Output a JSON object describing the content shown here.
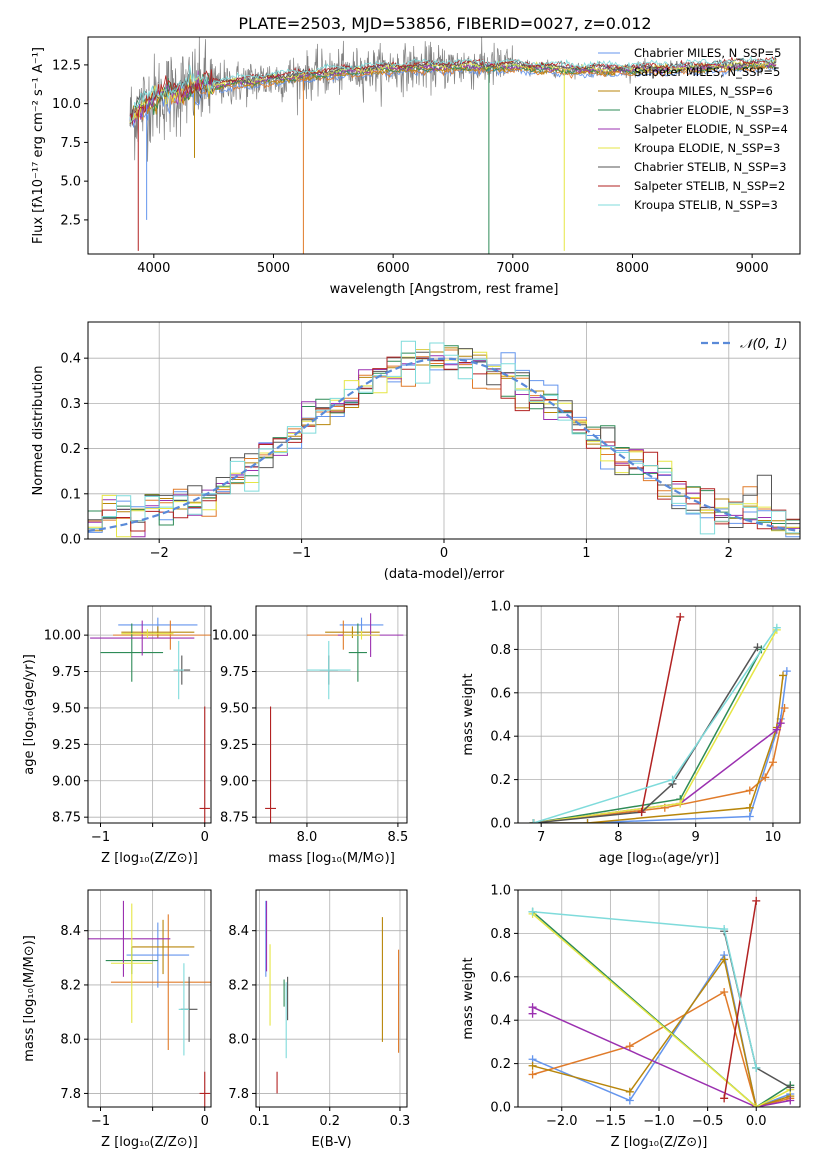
{
  "figure_title": "PLATE=2503, MJD=53856, FIBERID=0027, z=0.012",
  "model_colors": [
    "#6495ed",
    "#e07b2a",
    "#b8860b",
    "#2e8b57",
    "#9b30b0",
    "#e6e645",
    "#555555",
    "#b22222",
    "#7fdbdb"
  ],
  "chart_data": [
    {
      "id": "spectrum",
      "type": "line",
      "title": "PLATE=2503, MJD=53856, FIBERID=0027, z=0.012",
      "xlabel": "wavelength [Angstrom, rest frame]",
      "ylabel": "Flux [fλ10⁻¹⁷ erg cm⁻² s⁻¹ A⁻¹]",
      "xlim": [
        3450,
        9400
      ],
      "ylim": [
        0.3,
        14.3
      ],
      "xticks": [
        4000,
        5000,
        6000,
        7000,
        8000,
        9000
      ],
      "yticks": [
        2.5,
        5.0,
        7.5,
        10.0,
        12.5
      ],
      "xtick_labels": [
        "4000",
        "5000",
        "6000",
        "7000",
        "8000",
        "9000"
      ],
      "ytick_labels": [
        "2.5",
        "5.0",
        "7.5",
        "10.0",
        "12.5"
      ],
      "grid": false,
      "legend_position": "top-right",
      "legend": [
        "Chabrier MILES, N_SSP=5",
        "Salpeter MILES, N_SSP=5",
        "Kroupa MILES, N_SSP=6",
        "Chabrier ELODIE, N_SSP=3",
        "Salpeter ELODIE, N_SSP=4",
        "Kroupa ELODIE, N_SSP=3",
        "Chabrier STELIB, N_SSP=3",
        "Salpeter STELIB, N_SSP=2",
        "Kroupa STELIB, N_SSP=3"
      ],
      "data_wavelength_range": [
        3800,
        9200
      ],
      "continuum": {
        "x": [
          3800,
          3900,
          4000,
          4200,
          4500,
          5000,
          5500,
          6000,
          6500,
          7000,
          7500,
          8000,
          8500,
          9000,
          9200
        ],
        "y": [
          9.0,
          9.8,
          10.3,
          10.8,
          11.2,
          11.6,
          12.0,
          12.3,
          12.4,
          12.4,
          12.2,
          12.2,
          12.3,
          12.5,
          12.6
        ]
      },
      "spikes": [
        {
          "x": 5250,
          "y": 0.3
        },
        {
          "x": 6800,
          "y": 0.3
        },
        {
          "x": 7430,
          "y": 0.5
        },
        {
          "x": 3870,
          "y": 0.5
        },
        {
          "x": 3940,
          "y": 2.5
        },
        {
          "x": 4340,
          "y": 6.5
        }
      ]
    },
    {
      "id": "residual-histogram",
      "type": "line",
      "xlabel": "(data-model)/error",
      "ylabel": "Normed distribution",
      "xlim": [
        -2.5,
        2.5
      ],
      "ylim": [
        0,
        0.48
      ],
      "xticks": [
        -2,
        -1,
        0,
        1,
        2
      ],
      "yticks": [
        0.0,
        0.1,
        0.2,
        0.3,
        0.4
      ],
      "xtick_labels": [
        "−2",
        "−1",
        "0",
        "1",
        "2"
      ],
      "ytick_labels": [
        "0.0",
        "0.1",
        "0.2",
        "0.3",
        "0.4"
      ],
      "grid": true,
      "legend_position": "top-right",
      "legend": [
        "𝒩(0, 1)"
      ],
      "normal_curve": {
        "mean": 0,
        "std": 1
      }
    },
    {
      "id": "age-vs-z",
      "type": "scatter",
      "xlabel": "Z [log₁₀(Z/Z⊙)]",
      "ylabel": "age  [log₁₀(age/yr)]",
      "xlim": [
        -1.12,
        0.06
      ],
      "ylim": [
        8.71,
        10.2
      ],
      "xticks": [
        -1,
        -0.5,
        0
      ],
      "yticks": [
        8.75,
        9.0,
        9.25,
        9.5,
        9.75,
        10.0
      ],
      "xtick_labels": [
        "−1",
        "",
        "0"
      ],
      "ytick_labels": [
        "8.75",
        "9.00",
        "9.25",
        "9.50",
        "9.75",
        "10.00"
      ],
      "grid": true,
      "points": [
        {
          "x": -0.45,
          "y": 10.07,
          "xerr": 0.38,
          "yerr": 0.05
        },
        {
          "x": -0.33,
          "y": 10.0,
          "xerr": 0.55,
          "yerr": 0.1
        },
        {
          "x": -0.45,
          "y": 10.02,
          "xerr": 0.35,
          "yerr": 0.04
        },
        {
          "x": -0.7,
          "y": 9.88,
          "xerr": 0.3,
          "yerr": 0.2
        },
        {
          "x": -0.6,
          "y": 9.98,
          "xerr": 0.5,
          "yerr": 0.12
        },
        {
          "x": -0.55,
          "y": 10.01,
          "xerr": 0.25,
          "yerr": 0.03
        },
        {
          "x": -0.22,
          "y": 9.76,
          "xerr": 0.08,
          "yerr": 0.1
        },
        {
          "x": 0.0,
          "y": 8.81,
          "xerr": 0.05,
          "yerr": 0.7
        },
        {
          "x": -0.25,
          "y": 9.76,
          "xerr": 0.05,
          "yerr": 0.2
        }
      ]
    },
    {
      "id": "age-vs-mass",
      "type": "scatter",
      "xlabel": "mass [log₁₀(M/M⊙)]",
      "ylabel": "",
      "xlim": [
        7.72,
        8.55
      ],
      "ylim": [
        8.71,
        10.2
      ],
      "xticks": [
        8.0,
        8.5
      ],
      "yticks": [
        8.75,
        9.0,
        9.25,
        9.5,
        9.75,
        10.0
      ],
      "xtick_labels": [
        "8.0",
        "8.5"
      ],
      "ytick_labels": [
        "8.75",
        "9.00",
        "9.25",
        "9.50",
        "9.75",
        "10.00"
      ],
      "grid": true,
      "points": [
        {
          "x": 8.3,
          "y": 10.07,
          "xerr": 0.12,
          "yerr": 0.05
        },
        {
          "x": 8.2,
          "y": 10.0,
          "xerr": 0.2,
          "yerr": 0.1
        },
        {
          "x": 8.25,
          "y": 10.02,
          "xerr": 0.15,
          "yerr": 0.04
        },
        {
          "x": 8.28,
          "y": 9.88,
          "xerr": 0.05,
          "yerr": 0.2
        },
        {
          "x": 8.35,
          "y": 10.0,
          "xerr": 0.18,
          "yerr": 0.15
        },
        {
          "x": 8.3,
          "y": 10.0,
          "xerr": 0.1,
          "yerr": 0.03
        },
        {
          "x": 8.12,
          "y": 9.76,
          "xerr": 0.05,
          "yerr": 0.1
        },
        {
          "x": 7.8,
          "y": 8.81,
          "xerr": 0.03,
          "yerr": 0.7
        },
        {
          "x": 8.12,
          "y": 9.76,
          "xerr": 0.12,
          "yerr": 0.2
        }
      ]
    },
    {
      "id": "weight-vs-age",
      "type": "line",
      "xlabel": "age  [log₁₀(age/yr)]",
      "ylabel": "mass weight",
      "xlim": [
        6.7,
        10.35
      ],
      "ylim": [
        0,
        1.0
      ],
      "xticks": [
        7,
        8,
        9,
        10
      ],
      "yticks": [
        0.0,
        0.2,
        0.4,
        0.6,
        0.8,
        1.0
      ],
      "xtick_labels": [
        "7",
        "8",
        "9",
        "10"
      ],
      "ytick_labels": [
        "0.0",
        "0.2",
        "0.4",
        "0.6",
        "0.8",
        "1.0"
      ],
      "grid": true,
      "series": [
        {
          "x": [
            6.9,
            7.6,
            9.7,
            10.1,
            10.18
          ],
          "y": [
            0.0,
            0.0,
            0.03,
            0.48,
            0.7
          ]
        },
        {
          "x": [
            6.9,
            8.6,
            9.7,
            9.9,
            10.0,
            10.15
          ],
          "y": [
            0.0,
            0.07,
            0.15,
            0.21,
            0.28,
            0.53
          ]
        },
        {
          "x": [
            6.9,
            7.6,
            9.7,
            10.05,
            10.13
          ],
          "y": [
            0.0,
            0.0,
            0.07,
            0.44,
            0.68
          ]
        },
        {
          "x": [
            6.9,
            8.8,
            9.85
          ],
          "y": [
            0.0,
            0.11,
            0.8
          ]
        },
        {
          "x": [
            6.9,
            8.8,
            10.05,
            10.1
          ],
          "y": [
            0.0,
            0.09,
            0.43,
            0.46
          ]
        },
        {
          "x": [
            6.9,
            8.8,
            10.05
          ],
          "y": [
            0.0,
            0.09,
            0.89
          ]
        },
        {
          "x": [
            6.9,
            8.3,
            8.7,
            9.8
          ],
          "y": [
            0.0,
            0.05,
            0.18,
            0.81
          ]
        },
        {
          "x": [
            8.3,
            8.8
          ],
          "y": [
            0.05,
            0.95
          ]
        },
        {
          "x": [
            6.9,
            8.7,
            10.05
          ],
          "y": [
            0.0,
            0.2,
            0.9
          ]
        }
      ]
    },
    {
      "id": "mass-vs-z",
      "type": "scatter",
      "xlabel": "Z [log₁₀(Z/Z⊙)]",
      "ylabel": "mass [log₁₀(M/M⊙)]",
      "xlim": [
        -1.12,
        0.06
      ],
      "ylim": [
        7.75,
        8.55
      ],
      "xticks": [
        -1,
        -0.5,
        0
      ],
      "yticks": [
        7.8,
        8.0,
        8.2,
        8.4
      ],
      "xtick_labels": [
        "−1",
        "",
        "0"
      ],
      "ytick_labels": [
        "7.8",
        "8.0",
        "8.2",
        "8.4"
      ],
      "grid": true,
      "points": [
        {
          "x": -0.45,
          "y": 8.31,
          "xerr": 0.3,
          "yerr": 0.12
        },
        {
          "x": -0.35,
          "y": 8.21,
          "xerr": 0.55,
          "yerr": 0.25
        },
        {
          "x": -0.4,
          "y": 8.34,
          "xerr": 0.3,
          "yerr": 0.1
        },
        {
          "x": -0.7,
          "y": 8.29,
          "xerr": 0.25,
          "yerr": 0.05
        },
        {
          "x": -0.78,
          "y": 8.37,
          "xerr": 0.45,
          "yerr": 0.14
        },
        {
          "x": -0.7,
          "y": 8.28,
          "xerr": 0.2,
          "yerr": 0.22
        },
        {
          "x": -0.15,
          "y": 8.11,
          "xerr": 0.08,
          "yerr": 0.12
        },
        {
          "x": 0.0,
          "y": 7.8,
          "xerr": 0.05,
          "yerr": 0.08
        },
        {
          "x": -0.2,
          "y": 8.11,
          "xerr": 0.05,
          "yerr": 0.17
        }
      ]
    },
    {
      "id": "mass-vs-ebv",
      "type": "scatter",
      "xlabel": "E(B-V)",
      "ylabel": "",
      "xlim": [
        0.095,
        0.31
      ],
      "ylim": [
        7.75,
        8.55
      ],
      "xticks": [
        0.1,
        0.2,
        0.3
      ],
      "yticks": [
        7.8,
        8.0,
        8.2,
        8.4
      ],
      "xtick_labels": [
        "0.1",
        "0.2",
        "0.3"
      ],
      "ytick_labels": [
        "7.8",
        "8.0",
        "8.2",
        "8.4"
      ],
      "grid": true,
      "points": [
        {
          "x": 0.109,
          "y": 8.37,
          "xerr": 0.0,
          "yerr": 0.14
        },
        {
          "x": 0.298,
          "y": 8.14,
          "xerr": 0.0,
          "yerr": 0.19
        },
        {
          "x": 0.275,
          "y": 8.22,
          "xerr": 0.0,
          "yerr": 0.23
        },
        {
          "x": 0.135,
          "y": 8.17,
          "xerr": 0.0,
          "yerr": 0.05
        },
        {
          "x": 0.11,
          "y": 8.38,
          "xerr": 0.0,
          "yerr": 0.13
        },
        {
          "x": 0.115,
          "y": 8.2,
          "xerr": 0.0,
          "yerr": 0.15
        },
        {
          "x": 0.14,
          "y": 8.15,
          "xerr": 0.0,
          "yerr": 0.08
        },
        {
          "x": 0.125,
          "y": 7.84,
          "xerr": 0.0,
          "yerr": 0.04
        },
        {
          "x": 0.138,
          "y": 8.07,
          "xerr": 0.0,
          "yerr": 0.14
        }
      ]
    },
    {
      "id": "weight-vs-z",
      "type": "line",
      "xlabel": "Z [log₁₀(Z/Z⊙)]",
      "ylabel": "mass weight",
      "xlim": [
        -2.45,
        0.45
      ],
      "ylim": [
        0,
        1.0
      ],
      "xticks": [
        -2.0,
        -1.5,
        -1.0,
        -0.5,
        0.0
      ],
      "yticks": [
        0.0,
        0.2,
        0.4,
        0.6,
        0.8,
        1.0
      ],
      "xtick_labels": [
        "−2.0",
        "−1.5",
        "−1.0",
        "−0.5",
        "0.0"
      ],
      "ytick_labels": [
        "0.0",
        "0.2",
        "0.4",
        "0.6",
        "0.8",
        "1.0"
      ],
      "grid": true,
      "series": [
        {
          "x": [
            -2.3,
            -1.3,
            -0.33,
            0.0,
            0.35
          ],
          "y": [
            0.22,
            0.03,
            0.7,
            0.0,
            0.06
          ]
        },
        {
          "x": [
            -2.3,
            -1.3,
            -0.33,
            0.0,
            0.35
          ],
          "y": [
            0.15,
            0.28,
            0.53,
            0.0,
            0.04
          ]
        },
        {
          "x": [
            -2.3,
            -1.3,
            -0.33,
            0.0,
            0.35
          ],
          "y": [
            0.19,
            0.07,
            0.68,
            0.0,
            0.05
          ]
        },
        {
          "x": [
            -2.3,
            0.0,
            0.35
          ],
          "y": [
            0.9,
            0.0,
            0.1
          ]
        },
        {
          "x": [
            -2.3,
            -2.3,
            0.0,
            0.35
          ],
          "y": [
            0.43,
            0.46,
            0.0,
            0.03
          ]
        },
        {
          "x": [
            -2.3,
            0.0,
            0.35
          ],
          "y": [
            0.89,
            0.0,
            0.08
          ]
        },
        {
          "x": [
            -0.33,
            0.0,
            0.35
          ],
          "y": [
            0.81,
            0.18,
            0.09
          ]
        },
        {
          "x": [
            -0.33,
            0.0
          ],
          "y": [
            0.04,
            0.95
          ]
        },
        {
          "x": [
            -2.3,
            -0.33,
            0.0
          ],
          "y": [
            0.9,
            0.82,
            0.18
          ]
        }
      ]
    }
  ]
}
